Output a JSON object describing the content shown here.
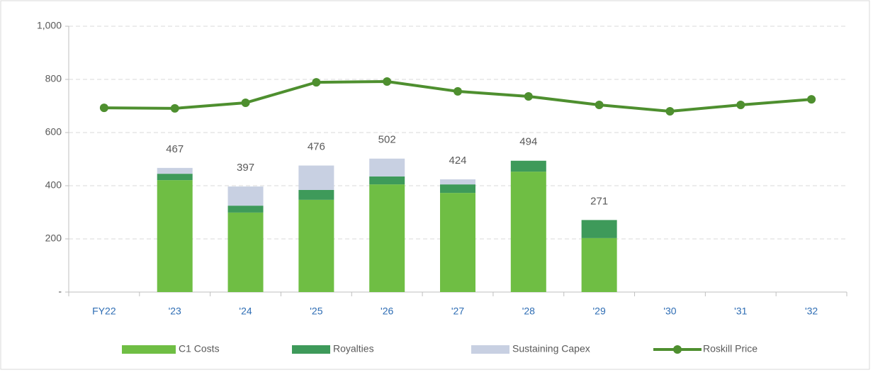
{
  "chart_data": {
    "type": "stacked_bar_line",
    "categories": [
      "FY22",
      "'23",
      "'24",
      "'25",
      "'26",
      "'27",
      "'28",
      "'29",
      "'30",
      "'31",
      "'32"
    ],
    "series": [
      {
        "name": "C1 Costs",
        "color": "#6fbe44",
        "kind": "bar",
        "values": [
          null,
          421,
          299,
          347,
          405,
          373,
          453,
          203,
          null,
          null,
          null
        ]
      },
      {
        "name": "Royalties",
        "color": "#3e9a5a",
        "kind": "bar",
        "values": [
          null,
          24,
          26,
          37,
          30,
          32,
          41,
          68,
          null,
          null,
          null
        ]
      },
      {
        "name": "Sustaining Capex",
        "color": "#c8d0e2",
        "kind": "bar",
        "values": [
          null,
          22,
          72,
          92,
          67,
          19,
          0,
          0,
          null,
          null,
          null
        ]
      },
      {
        "name": "Roskill Price",
        "color": "#4e8f2f",
        "kind": "line",
        "values": [
          693,
          691,
          712,
          789,
          792,
          755,
          736,
          704,
          680,
          704,
          725
        ]
      }
    ],
    "totals": [
      null,
      467,
      397,
      476,
      502,
      424,
      494,
      271,
      null,
      null,
      null
    ],
    "ylim": [
      0,
      1000
    ],
    "yticks": [
      {
        "value": 0,
        "label": "-"
      },
      200,
      400,
      600,
      800,
      {
        "value": 1000,
        "label": "1,000"
      }
    ],
    "grid": true,
    "legend": "bottom"
  }
}
